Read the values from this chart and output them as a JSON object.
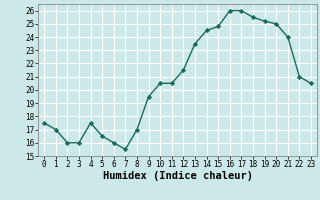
{
  "x": [
    0,
    1,
    2,
    3,
    4,
    5,
    6,
    7,
    8,
    9,
    10,
    11,
    12,
    13,
    14,
    15,
    16,
    17,
    18,
    19,
    20,
    21,
    22,
    23
  ],
  "y": [
    17.5,
    17.0,
    16.0,
    16.0,
    17.5,
    16.5,
    16.0,
    15.5,
    17.0,
    19.5,
    20.5,
    20.5,
    21.5,
    23.5,
    24.5,
    24.8,
    26.0,
    26.0,
    25.5,
    25.2,
    25.0,
    24.0,
    21.0,
    20.5
  ],
  "line_color": "#1a6b5a",
  "marker": "D",
  "marker_size": 2.2,
  "bg_color": "#cce8e8",
  "grid_color": "#ffffff",
  "xlabel": "Humidex (Indice chaleur)",
  "ylim": [
    15,
    26.5
  ],
  "xlim": [
    -0.5,
    23.5
  ],
  "yticks": [
    15,
    16,
    17,
    18,
    19,
    20,
    21,
    22,
    23,
    24,
    25,
    26
  ],
  "xticks": [
    0,
    1,
    2,
    3,
    4,
    5,
    6,
    7,
    8,
    9,
    10,
    11,
    12,
    13,
    14,
    15,
    16,
    17,
    18,
    19,
    20,
    21,
    22,
    23
  ],
  "tick_labelsize": 5.5,
  "xlabel_fontsize": 7.5,
  "linewidth": 1.0
}
